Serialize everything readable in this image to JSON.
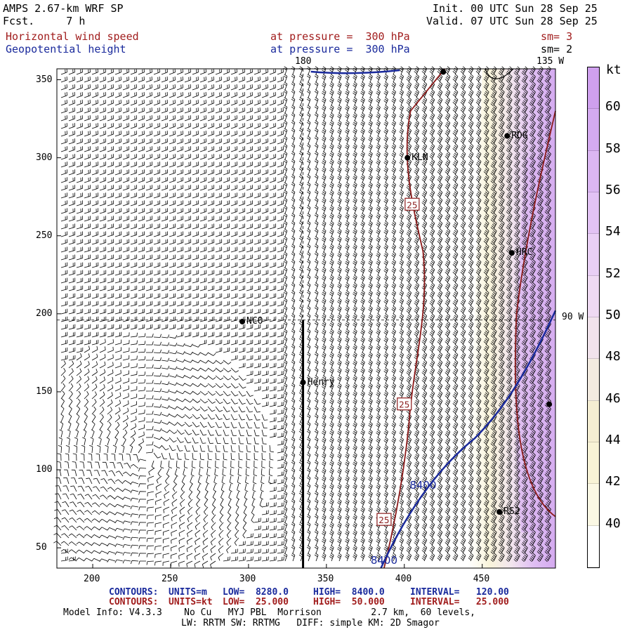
{
  "header": {
    "model": "AMPS 2.67-km WRF SP",
    "forecast": "Fcst.     7 h",
    "init": "Init. 00 UTC Sun 28 Sep 25",
    "valid": "Valid. 07 UTC Sun 28 Sep 25",
    "field1_name": "Horizontal wind speed",
    "field1_level": "at pressure =  300 hPa",
    "field1_sm": "sm= 3",
    "field2_name": "Geopotential height",
    "field2_level": "at pressure =  300 hPa",
    "field2_sm": "sm= 2"
  },
  "map": {
    "lon_label_top": "180",
    "lon_label_topright": "135 W",
    "lon_label_right": "90 W",
    "x_ticks": [
      "200",
      "250",
      "300",
      "350",
      "400",
      "450"
    ],
    "y_ticks": [
      "350",
      "300",
      "250",
      "200",
      "150",
      "100",
      "50"
    ],
    "stations": [
      {
        "label": "KLN",
        "x": 402,
        "y": 300
      },
      {
        "label": "RDG",
        "x": 466,
        "y": 314
      },
      {
        "label": "HRC",
        "x": 469,
        "y": 239
      },
      {
        "label": "NCO",
        "x": 296,
        "y": 195
      },
      {
        "label": "Henry",
        "x": 335,
        "y": 156
      },
      {
        "label": "RS2",
        "x": 461,
        "y": 73
      },
      {
        "label": "",
        "x": 425,
        "y": 355
      },
      {
        "label": "",
        "x": 493,
        "y": 142
      }
    ],
    "contour_labels": [
      {
        "text": "25",
        "x": 405,
        "y": 270
      },
      {
        "text": "25",
        "x": 400,
        "y": 142
      },
      {
        "text": "25",
        "x": 387,
        "y": 68
      },
      {
        "text": "8400",
        "x": 412,
        "y": 90
      },
      {
        "text": "8400",
        "x": 387,
        "y": 42
      }
    ]
  },
  "colorbar": {
    "unit": "kt",
    "labels": [
      "60",
      "58",
      "56",
      "54",
      "52",
      "50",
      "48",
      "46",
      "44",
      "42",
      "40"
    ],
    "colors": [
      "#cfa0ee",
      "#d4aaf0",
      "#dbb6f2",
      "#e2c2f4",
      "#e9cff5",
      "#efdaf3",
      "#f1e3ec",
      "#f3ebe0",
      "#f5eed2",
      "#f8f3d6",
      "#fbf8e4",
      "#ffffff"
    ]
  },
  "footer": {
    "c1_label": "CONTOURS:",
    "c1_units": "UNITS=m",
    "c1_low": "LOW=  8280.0",
    "c1_high": "HIGH=  8400.0",
    "c1_interval": "INTERVAL=   120.00",
    "c2_label": "CONTOURS:",
    "c2_units": "UNITS=kt",
    "c2_low": "LOW=  25.000",
    "c2_high": "HIGH=  50.000",
    "c2_interval": "INTERVAL=   25.000",
    "model_info": "Model Info: V4.3.3    No Cu   MYJ PBL  Morrison         2.7 km,  60 levels,",
    "physics": "LW: RRTM SW: RRTMG   DIFF: simple KM: 2D Smagor"
  }
}
